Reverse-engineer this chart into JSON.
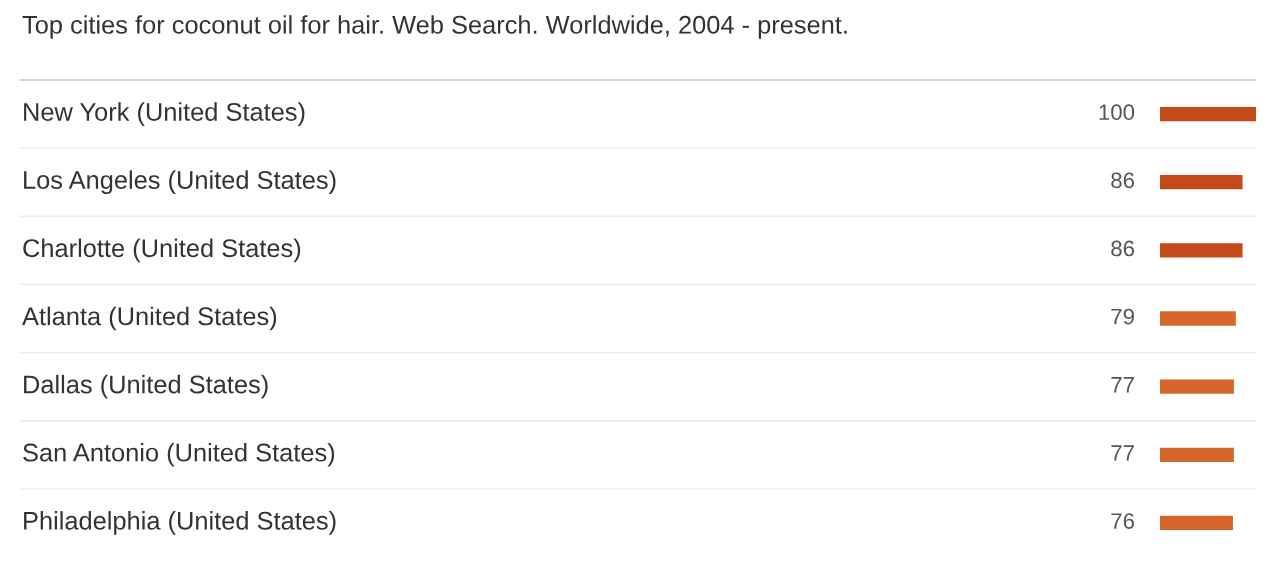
{
  "chart_data": {
    "type": "bar",
    "orientation": "horizontal",
    "title": "Top cities for coconut oil for hair. Web Search. Worldwide, 2004 - present.",
    "categories": [
      "New York (United States)",
      "Los Angeles (United States)",
      "Charlotte (United States)",
      "Atlanta (United States)",
      "Dallas (United States)",
      "San Antonio (United States)",
      "Philadelphia (United States)"
    ],
    "values": [
      100,
      86,
      86,
      79,
      77,
      77,
      76
    ],
    "colors": [
      "#c44a1c",
      "#c44a1c",
      "#c44a1c",
      "#d6662c",
      "#d6662c",
      "#d6662c",
      "#d6662c"
    ],
    "data_labels": true
  }
}
